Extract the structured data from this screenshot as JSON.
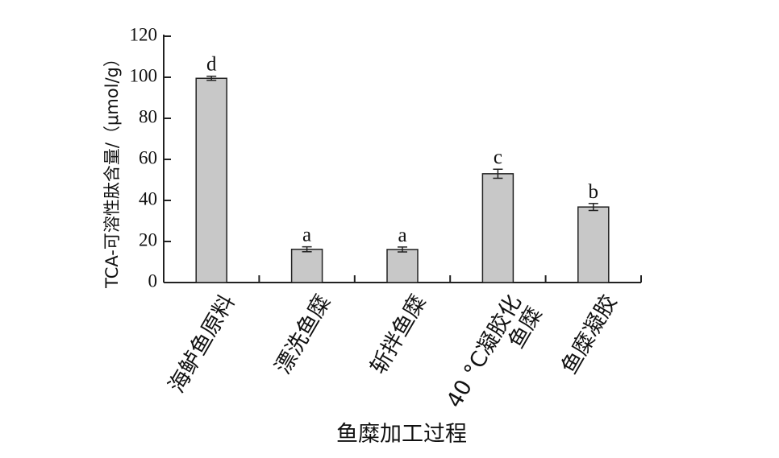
{
  "chart_data": {
    "type": "bar",
    "categories": [
      "海鲈鱼原料",
      "漂洗鱼糜",
      "斩拌鱼糜",
      "40 °C凝胶化鱼糜",
      "鱼糜凝胶"
    ],
    "category_lines": [
      [
        "海鲈鱼原料"
      ],
      [
        "漂洗鱼糜"
      ],
      [
        "斩拌鱼糜"
      ],
      [
        "40 °C凝胶化",
        "鱼糜"
      ],
      [
        "鱼糜凝胶"
      ]
    ],
    "values": [
      99.5,
      16.2,
      16.1,
      53.0,
      36.8
    ],
    "errors": [
      1.0,
      1.2,
      1.2,
      2.2,
      1.7
    ],
    "significance": [
      "d",
      "a",
      "a",
      "c",
      "b"
    ],
    "xlabel": "鱼糜加工过程",
    "ylabel": "TCA-可溶性肽含量/（μmol/g）",
    "ylim": [
      0,
      120
    ],
    "yticks": [
      0,
      20,
      40,
      60,
      80,
      100,
      120
    ],
    "bar_color": "#c8c8c8",
    "grid": false
  }
}
